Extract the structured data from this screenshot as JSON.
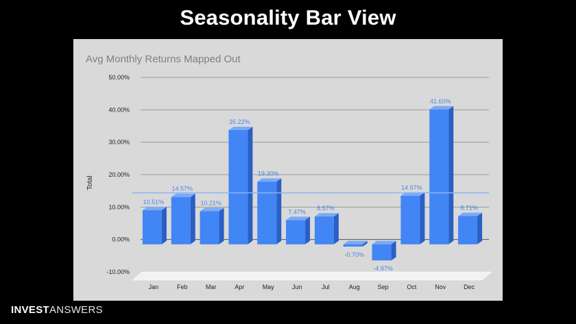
{
  "slide": {
    "title": "Seasonality Bar View"
  },
  "brand": {
    "part1": "INVEST",
    "part2": "ANSWERS"
  },
  "chart_data": {
    "type": "bar",
    "title": "Avg Monthly Returns Mapped Out",
    "xlabel": "",
    "ylabel": "Total",
    "categories": [
      "Jan",
      "Feb",
      "Mar",
      "Apr",
      "May",
      "Jun",
      "Jul",
      "Aug",
      "Sep",
      "Oct",
      "Nov",
      "Dec"
    ],
    "values": [
      10.51,
      14.57,
      10.21,
      35.22,
      19.3,
      7.47,
      8.57,
      -0.7,
      -4.97,
      14.97,
      41.6,
      8.71
    ],
    "value_labels": [
      "10.51%",
      "14.57%",
      "10.21%",
      "35.22%",
      "19.30%",
      "7.47%",
      "8.57%",
      "-0.70%",
      "-4.97%",
      "14.97%",
      "41.60%",
      "8.71%"
    ],
    "yticks": [
      50,
      40,
      30,
      20,
      10,
      0,
      -10
    ],
    "ytick_labels": [
      "50.00%",
      "40.00%",
      "30.00%",
      "20.00%",
      "10.00%",
      "0.00%",
      "-10.00%"
    ],
    "ylim": [
      -10,
      50
    ],
    "reference_line": 14.4,
    "grid": true,
    "legend": "none",
    "style": "3d-column",
    "colors": {
      "bar": "#4285f4",
      "bar_dark": "#2a5fc4",
      "bar_top": "#7aa9f7",
      "label": "#4a86e8",
      "ref_line": "#8ab4f8",
      "background": "#d9d9d9",
      "title": "#7f7f7f"
    }
  }
}
